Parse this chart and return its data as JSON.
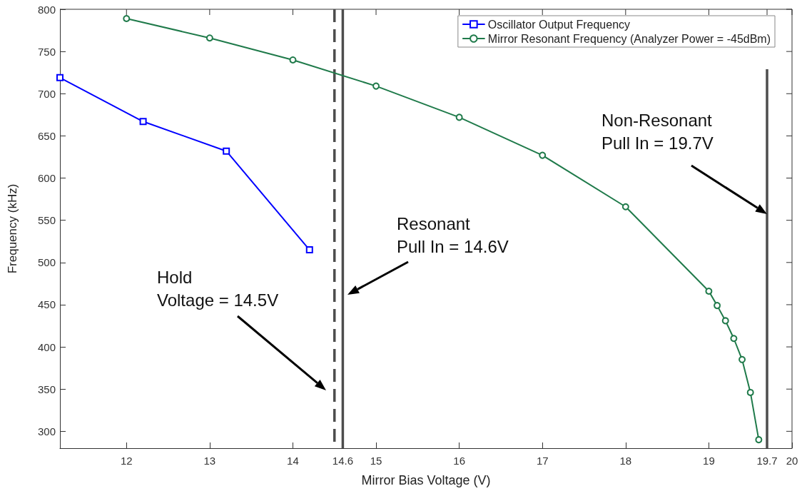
{
  "chart_data": {
    "type": "line",
    "xlabel": "Mirror Bias Voltage (V)",
    "ylabel": "Frequency (kHz)",
    "xlim": [
      11.2,
      20
    ],
    "xticks": [
      12,
      13,
      14,
      14.6,
      15,
      16,
      17,
      18,
      19,
      19.7,
      20
    ],
    "ylim": [
      280,
      800
    ],
    "yticks": [
      300,
      350,
      400,
      450,
      500,
      550,
      600,
      650,
      700,
      750,
      800
    ],
    "grid": false,
    "legend": "top right",
    "line_style": "solid",
    "series": [
      {
        "name": "Oscillator Output Frequency",
        "color": "#0000ff",
        "marker": "square",
        "x": [
          11.2,
          12.2,
          13.2,
          14.2
        ],
        "values": [
          719,
          667,
          632,
          515
        ]
      },
      {
        "name": "Mirror Resonant Frequency (Analyzer Power = -45dBm)",
        "color": "#1f7a4a",
        "marker": "circle",
        "x": [
          12,
          13,
          14,
          15,
          16,
          17,
          18,
          19,
          19.1,
          19.2,
          19.3,
          19.4,
          19.5,
          19.6
        ],
        "values": [
          789,
          766,
          740,
          709,
          672,
          627,
          566,
          466,
          449,
          431,
          410,
          385,
          346,
          290
        ]
      }
    ],
    "ref_lines": [
      {
        "axis": "x",
        "value": 14.5,
        "color": "#4d4d4d",
        "line_style": "dashed"
      },
      {
        "axis": "x",
        "value": 14.6,
        "color": "#4d4d4d",
        "line_style": "solid"
      },
      {
        "axis": "x",
        "value": 19.7,
        "color": "#4d4d4d",
        "line_style": "solid"
      }
    ],
    "annotations": [
      "Hold\nVoltage = 14.5V",
      "Resonant\nPull In = 14.6V",
      "Non-Resonant\nPull In = 19.7V"
    ]
  }
}
